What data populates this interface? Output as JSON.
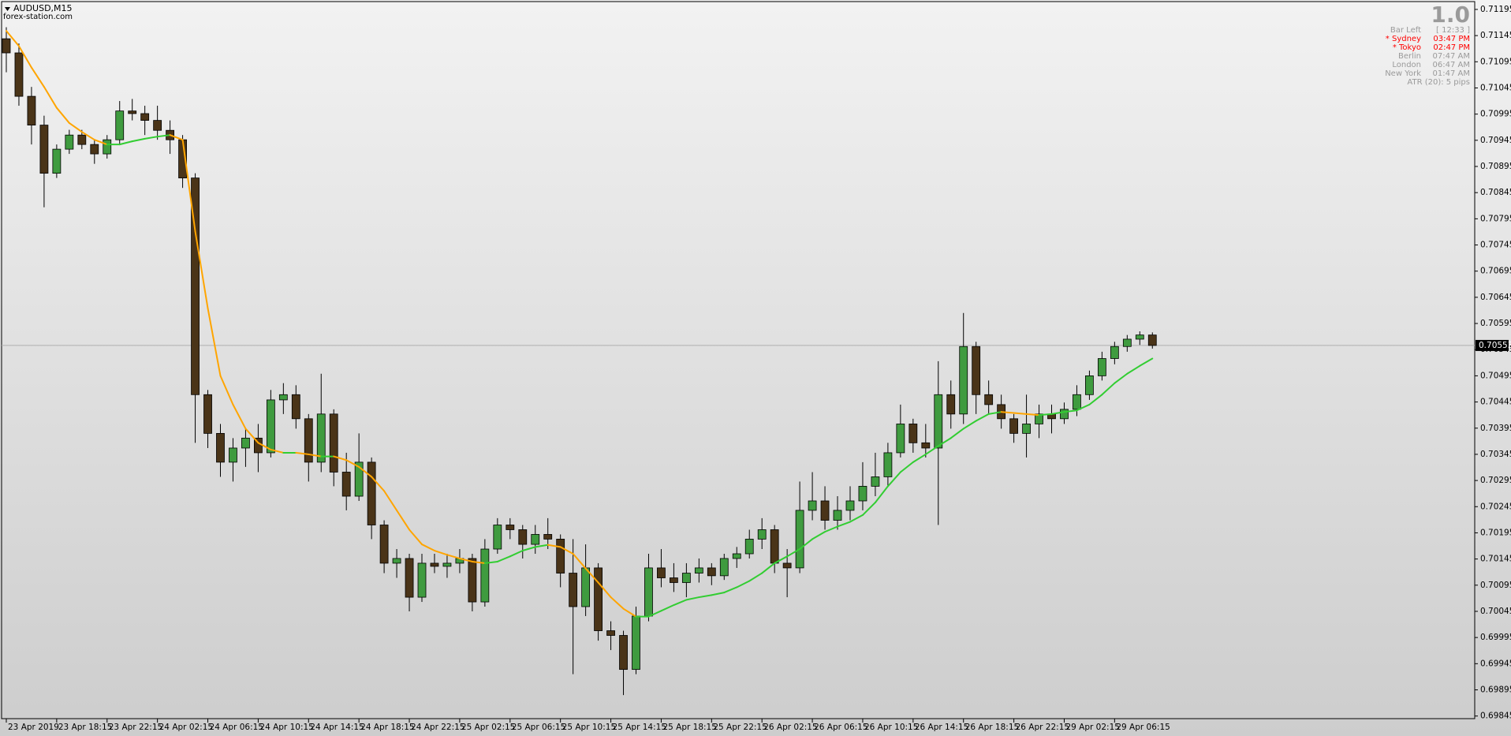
{
  "chart_data": {
    "type": "candlestick",
    "title": "AUDUSD,M15",
    "subtitle": "forex-station.com",
    "up_color": "#3f9b3f",
    "down_color": "#4a3418",
    "wick_color": "#000000",
    "categories": [
      "23 Apr 2019",
      null,
      null,
      null,
      "23 Apr 18:15",
      null,
      null,
      null,
      "23 Apr 22:15",
      null,
      null,
      null,
      "24 Apr 02:15",
      null,
      null,
      null,
      "24 Apr 06:15",
      null,
      null,
      null,
      "24 Apr 10:15",
      null,
      null,
      null,
      "24 Apr 14:15",
      null,
      null,
      null,
      "24 Apr 18:15",
      null,
      null,
      null,
      "24 Apr 22:15",
      null,
      null,
      null,
      "25 Apr 02:15",
      null,
      null,
      null,
      "25 Apr 06:15",
      null,
      null,
      null,
      "25 Apr 10:15",
      null,
      null,
      null,
      "25 Apr 14:15",
      null,
      null,
      null,
      "25 Apr 18:15",
      null,
      null,
      null,
      "25 Apr 22:15",
      null,
      null,
      null,
      "26 Apr 02:15",
      null,
      null,
      null,
      "26 Apr 06:15",
      null,
      null,
      null,
      "26 Apr 10:15",
      null,
      null,
      null,
      "26 Apr 14:15",
      null,
      null,
      null,
      "26 Apr 18:15",
      null,
      null,
      null,
      "26 Apr 22:15",
      null,
      null,
      null,
      "29 Apr 02:15",
      null,
      null,
      null,
      "29 Apr 06:15",
      null,
      null,
      null
    ],
    "open": [
      0.71139,
      0.71112,
      0.71029,
      0.70974,
      0.70882,
      0.70928,
      0.70955,
      0.70937,
      0.70919,
      0.70946,
      0.71001,
      0.70996,
      0.70983,
      0.70964,
      0.70946,
      0.70873,
      0.70459,
      0.70385,
      0.7033,
      0.70357,
      0.70376,
      0.70348,
      0.70449,
      0.70459,
      0.70413,
      0.7033,
      0.70422,
      0.70311,
      0.70265,
      0.7033,
      0.7021,
      0.70137,
      0.70146,
      0.70072,
      0.70137,
      0.70131,
      0.70137,
      0.70146,
      0.70063,
      0.70164,
      0.7021,
      0.70201,
      0.70173,
      0.70192,
      0.70183,
      0.70118,
      0.70054,
      0.70128,
      0.70008,
      0.69999,
      0.69934,
      0.70036,
      0.70128,
      0.70109,
      0.701,
      0.70118,
      0.70128,
      0.70113,
      0.70146,
      0.70155,
      0.70183,
      0.70201,
      0.70137,
      0.70128,
      0.70238,
      0.70256,
      0.70219,
      0.70238,
      0.70256,
      0.70284,
      0.70302,
      0.70348,
      0.70403,
      0.70367,
      0.70357,
      0.70459,
      0.70422,
      0.70551,
      0.70459,
      0.7044,
      0.70413,
      0.70385,
      0.70403,
      0.70422,
      0.70413,
      0.70431,
      0.70459,
      0.70495,
      0.70528,
      0.70551,
      0.70565,
      0.70573
    ],
    "high": [
      0.71161,
      0.7113,
      0.71047,
      0.70992,
      0.70937,
      0.70965,
      0.70965,
      0.70946,
      0.70955,
      0.7102,
      0.71024,
      0.71011,
      0.71011,
      0.70983,
      0.70955,
      0.70882,
      0.70468,
      0.70403,
      0.70376,
      0.70394,
      0.70403,
      0.70468,
      0.70481,
      0.70477,
      0.70422,
      0.70499,
      0.70431,
      0.70348,
      0.70385,
      0.70339,
      0.70219,
      0.70164,
      0.70155,
      0.70155,
      0.70155,
      0.70155,
      0.70164,
      0.70155,
      0.70183,
      0.70223,
      0.70223,
      0.7021,
      0.7021,
      0.70223,
      0.70192,
      0.70183,
      0.70173,
      0.70137,
      0.70026,
      0.70008,
      0.70054,
      0.70155,
      0.70164,
      0.70137,
      0.70137,
      0.70146,
      0.70137,
      0.70155,
      0.70168,
      0.70201,
      0.70223,
      0.7021,
      0.70164,
      0.70293,
      0.70311,
      0.70284,
      0.70265,
      0.70284,
      0.7033,
      0.70348,
      0.70367,
      0.7044,
      0.70413,
      0.70403,
      0.70523,
      0.70486,
      0.70615,
      0.7056,
      0.70486,
      0.70459,
      0.70422,
      0.70459,
      0.7044,
      0.7044,
      0.70444,
      0.70477,
      0.70505,
      0.70541,
      0.7056,
      0.70573,
      0.7058,
      0.70578
    ],
    "low": [
      0.71075,
      0.71011,
      0.70937,
      0.70817,
      0.70873,
      0.70919,
      0.70928,
      0.709,
      0.7091,
      0.70937,
      0.70983,
      0.70955,
      0.70946,
      0.70919,
      0.70854,
      0.70367,
      0.70357,
      0.70302,
      0.70293,
      0.70321,
      0.70311,
      0.70339,
      0.70422,
      0.70394,
      0.70293,
      0.70311,
      0.70284,
      0.70238,
      0.70256,
      0.70183,
      0.70118,
      0.70109,
      0.70045,
      0.70063,
      0.70118,
      0.70109,
      0.70118,
      0.70045,
      0.70054,
      0.70155,
      0.70183,
      0.70146,
      0.70155,
      0.70164,
      0.70091,
      0.69925,
      0.70036,
      0.69989,
      0.69971,
      0.69885,
      0.69925,
      0.70026,
      0.70091,
      0.70082,
      0.70072,
      0.701,
      0.70095,
      0.70105,
      0.70128,
      0.70146,
      0.70164,
      0.70118,
      0.70072,
      0.70118,
      0.70219,
      0.70201,
      0.70201,
      0.70219,
      0.70238,
      0.70265,
      0.70284,
      0.70339,
      0.70348,
      0.70339,
      0.7021,
      0.70394,
      0.70403,
      0.70422,
      0.70422,
      0.70394,
      0.70367,
      0.70339,
      0.70376,
      0.70385,
      0.70403,
      0.70418,
      0.70449,
      0.70486,
      0.70517,
      0.70541,
      0.70554,
      0.70547
    ],
    "close": [
      0.71112,
      0.71029,
      0.70974,
      0.70882,
      0.70928,
      0.70955,
      0.70937,
      0.70919,
      0.70946,
      0.71001,
      0.70996,
      0.70983,
      0.70964,
      0.70946,
      0.70873,
      0.70459,
      0.70385,
      0.7033,
      0.70357,
      0.70376,
      0.70348,
      0.70449,
      0.70459,
      0.70413,
      0.7033,
      0.70422,
      0.70311,
      0.70265,
      0.7033,
      0.7021,
      0.70137,
      0.70146,
      0.70072,
      0.70137,
      0.70131,
      0.70137,
      0.70146,
      0.70063,
      0.70164,
      0.7021,
      0.70201,
      0.70173,
      0.70192,
      0.70183,
      0.70118,
      0.70054,
      0.70128,
      0.70008,
      0.69999,
      0.69934,
      0.70036,
      0.70128,
      0.70109,
      0.701,
      0.70118,
      0.70128,
      0.70113,
      0.70146,
      0.70155,
      0.70183,
      0.70201,
      0.70137,
      0.70128,
      0.70238,
      0.70256,
      0.70219,
      0.70238,
      0.70256,
      0.70284,
      0.70302,
      0.70348,
      0.70403,
      0.70367,
      0.70357,
      0.70459,
      0.70422,
      0.70551,
      0.70459,
      0.7044,
      0.70413,
      0.70385,
      0.70403,
      0.70422,
      0.70413,
      0.70431,
      0.70459,
      0.70495,
      0.70528,
      0.70551,
      0.70565,
      0.70573,
      0.70553
    ],
    "moving_average": {
      "rising_color": "#32cd32",
      "falling_color": "#ffa500",
      "values": [
        0.71154,
        0.71125,
        0.71084,
        0.71047,
        0.71007,
        0.70978,
        0.70961,
        0.70946,
        0.70937,
        0.70937,
        0.70943,
        0.70948,
        0.70952,
        0.70955,
        0.70946,
        0.70771,
        0.70624,
        0.70495,
        0.7044,
        0.70394,
        0.70367,
        0.70354,
        0.70348,
        0.70348,
        0.70345,
        0.70341,
        0.70341,
        0.70334,
        0.70321,
        0.70302,
        0.70275,
        0.70238,
        0.70201,
        0.70173,
        0.70161,
        0.70153,
        0.70146,
        0.7014,
        0.70137,
        0.7014,
        0.7015,
        0.70161,
        0.70168,
        0.70172,
        0.70168,
        0.70155,
        0.70127,
        0.701,
        0.70072,
        0.7005,
        0.70035,
        0.70035,
        0.70046,
        0.70057,
        0.70067,
        0.70072,
        0.70076,
        0.70081,
        0.70091,
        0.70103,
        0.70118,
        0.70137,
        0.7015,
        0.70164,
        0.70183,
        0.70197,
        0.70207,
        0.70216,
        0.70229,
        0.70253,
        0.70284,
        0.70311,
        0.7033,
        0.70345,
        0.70361,
        0.70376,
        0.70394,
        0.70409,
        0.70422,
        0.70426,
        0.70424,
        0.70422,
        0.7042,
        0.70422,
        0.70426,
        0.70429,
        0.7044,
        0.70459,
        0.70481,
        0.70499,
        0.70514,
        0.70528
      ]
    },
    "current_price": 0.70553,
    "ylim": [
      0.6984,
      0.7121
    ],
    "yticks": [
      0.71195,
      0.71145,
      0.71095,
      0.71045,
      0.70995,
      0.70945,
      0.70895,
      0.70845,
      0.70795,
      0.70745,
      0.70695,
      0.70645,
      0.70595,
      0.70545,
      0.70495,
      0.70445,
      0.70395,
      0.70345,
      0.70295,
      0.70245,
      0.70195,
      0.70145,
      0.70095,
      0.70045,
      0.69995,
      0.69945,
      0.69895,
      0.69845
    ],
    "grid": false,
    "info_panel": {
      "version": "1.0",
      "highlight_color": "#ff0000",
      "rows": [
        {
          "label": "Bar Left",
          "value": "[ 12:33 ]",
          "highlight": false
        },
        {
          "label": "* Sydney",
          "value": "03:47 PM",
          "highlight": true
        },
        {
          "label": "* Tokyo",
          "value": "02:47 PM",
          "highlight": true
        },
        {
          "label": "Berlin",
          "value": "07:47 AM",
          "highlight": false
        },
        {
          "label": "London",
          "value": "06:47 AM",
          "highlight": false
        },
        {
          "label": "New York",
          "value": "01:47 AM",
          "highlight": false
        }
      ],
      "atr": "ATR (20): 5 pips"
    }
  }
}
